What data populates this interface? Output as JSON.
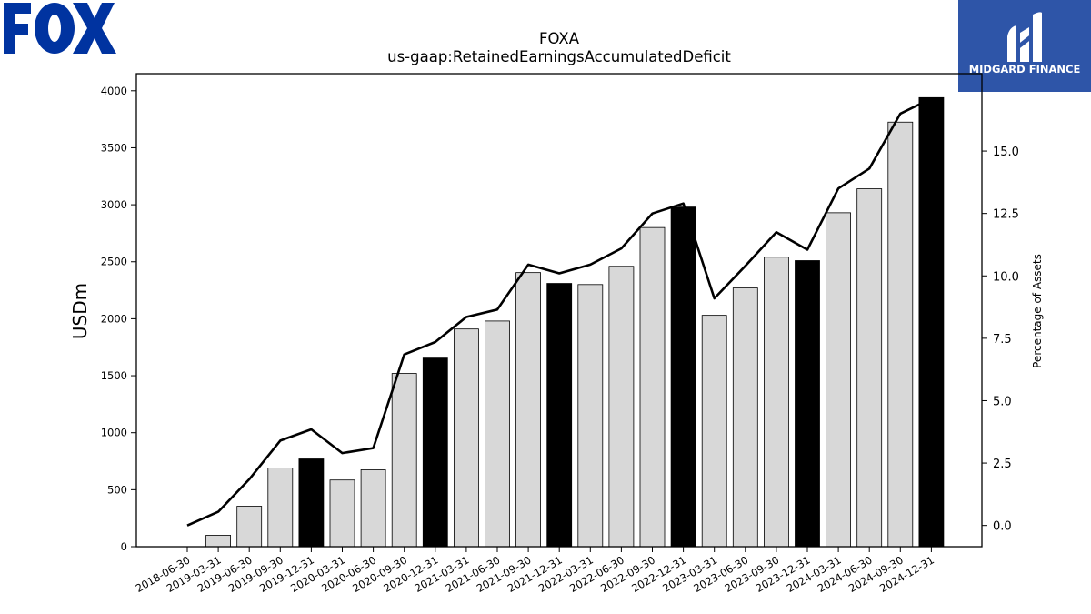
{
  "chart_data": {
    "type": "bar",
    "title": "FOXA",
    "subtitle": "us-gaap:RetainedEarningsAccumulatedDeficit",
    "ylabel": "USDm",
    "y2label": "Percentage of Assets",
    "ylim": [
      0,
      4150
    ],
    "y2lim": [
      -0.85,
      18.1
    ],
    "yticks": [
      0,
      500,
      1000,
      1500,
      2000,
      2500,
      3000,
      3500,
      4000
    ],
    "y2ticks": [
      0.0,
      2.5,
      5.0,
      7.5,
      10.0,
      12.5,
      15.0
    ],
    "grid": false,
    "legend": "none",
    "categories": [
      "2018-06-30",
      "2019-03-31",
      "2019-06-30",
      "2019-09-30",
      "2019-12-31",
      "2020-03-31",
      "2020-06-30",
      "2020-09-30",
      "2020-12-31",
      "2021-03-31",
      "2021-06-30",
      "2021-09-30",
      "2021-12-31",
      "2022-03-31",
      "2022-06-30",
      "2022-09-30",
      "2022-12-31",
      "2023-03-31",
      "2023-06-30",
      "2023-09-30",
      "2023-12-31",
      "2024-03-31",
      "2024-06-30",
      "2024-09-30",
      "2024-12-31"
    ],
    "series": [
      {
        "kind": "bar",
        "values": [
          0,
          100,
          355,
          690,
          770,
          585,
          675,
          1520,
          1655,
          1910,
          1980,
          2405,
          2310,
          2300,
          2460,
          2800,
          2980,
          2030,
          2270,
          2540,
          2510,
          2930,
          3140,
          3725,
          3940
        ],
        "highlight": [
          false,
          false,
          false,
          false,
          true,
          false,
          false,
          false,
          true,
          false,
          false,
          false,
          true,
          false,
          false,
          false,
          true,
          false,
          false,
          false,
          true,
          false,
          false,
          false,
          true
        ]
      },
      {
        "kind": "line",
        "axis": "right",
        "values": [
          0.0,
          0.55,
          1.85,
          3.4,
          3.85,
          2.9,
          3.1,
          6.85,
          7.35,
          8.35,
          8.65,
          10.45,
          10.1,
          10.45,
          11.1,
          12.5,
          12.9,
          9.1,
          10.4,
          11.75,
          11.05,
          13.5,
          14.3,
          16.5,
          17.1
        ]
      }
    ],
    "colors": {
      "bar": "#d8d8d8",
      "bar_highlight": "#000000",
      "line": "#000000",
      "edge": "#000000"
    }
  },
  "logos": {
    "left": "FOX",
    "right": "MIDGARD FINANCE",
    "right_bg": "#2e55a8"
  }
}
